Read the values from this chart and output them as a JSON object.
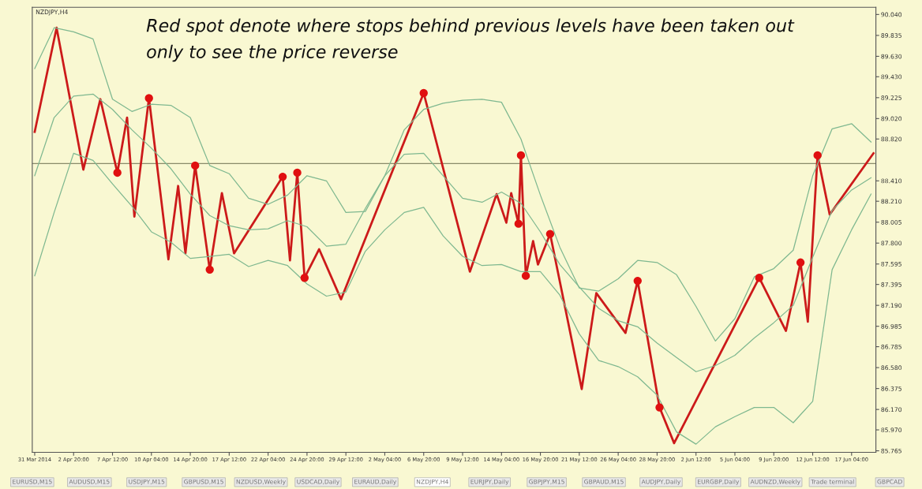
{
  "chart_data": {
    "type": "line",
    "title": "NZDJPY,H4",
    "annotations": [
      "Red spot denote where stops behind previous levels have been taken out\nonly to see the price reverse",
      "EURUSD,M15",
      "AUDUSD,M15",
      "USDJPY,M15",
      "GBPUSD,M15",
      "NZDUSD,Weekly",
      "USDCAD,Daily",
      "EURAUD,Daily",
      "NZDJPY,H4",
      "EURJPY,Daily",
      "GBPJPY,M15",
      "GBPAUD,M15",
      "AUDJPY,Daily",
      "EURGBP,Daily",
      "AUDNZD,Weekly",
      "Trade terminal",
      "GBPCAD"
    ],
    "categories": [
      "31 Mar 2014",
      null,
      null,
      null,
      null,
      null,
      null,
      null,
      null,
      null,
      null,
      null,
      null,
      null,
      null,
      null,
      "2 Apr 20:00",
      null,
      null,
      null,
      null,
      null,
      null,
      null,
      null,
      null,
      null,
      null,
      null,
      null,
      null,
      null,
      "7 Apr 12:00",
      null,
      null,
      null,
      null,
      null,
      null,
      null,
      null,
      null,
      null,
      null,
      null,
      null,
      null,
      null,
      "10 Apr 04:00",
      null,
      null,
      null,
      null,
      null,
      null,
      null,
      null,
      null,
      null,
      null,
      null,
      null,
      null,
      null,
      "14 Apr 20:00",
      null,
      null,
      null,
      null,
      null,
      null,
      null,
      null,
      null,
      null,
      null,
      null,
      null,
      null,
      null,
      "17 Apr 12:00",
      null,
      null,
      null,
      null,
      null,
      null,
      null,
      null,
      null,
      null,
      null,
      null,
      null,
      null,
      null,
      "22 Apr 04:00",
      null,
      null,
      null,
      null,
      null,
      null,
      null,
      null,
      null,
      null,
      null,
      null,
      null,
      null,
      null,
      "24 Apr 20:00",
      null,
      null,
      null,
      null,
      null,
      null,
      null,
      null,
      null,
      null,
      null,
      null,
      null,
      null,
      null,
      "29 Apr 12:00",
      null,
      null,
      null,
      null,
      null,
      null,
      null,
      null,
      null,
      null,
      null,
      null,
      null,
      null,
      null,
      "2 May 04:00",
      null,
      null,
      null,
      null,
      null,
      null,
      null,
      null,
      null,
      null,
      null,
      null,
      null,
      null,
      null,
      "6 May 20:00",
      null,
      null,
      null,
      null,
      null,
      null,
      null,
      null,
      null,
      null,
      null,
      null,
      null,
      null,
      null,
      "9 May 12:00",
      null,
      null,
      null,
      null,
      null,
      null,
      null,
      null,
      null,
      null,
      null,
      null,
      null,
      null,
      null,
      "14 May 04:00",
      null,
      null,
      null,
      null,
      null,
      null,
      null,
      null,
      null,
      null,
      null,
      null,
      null,
      null,
      null,
      "16 May 20:00",
      null,
      null,
      null,
      null,
      null,
      null,
      null,
      null,
      null,
      null,
      null,
      null,
      null,
      null,
      null,
      "21 May 12:00",
      null,
      null,
      null,
      null,
      null,
      null,
      null,
      null,
      null,
      null,
      null,
      null,
      null,
      null,
      null,
      "26 May 04:00",
      null,
      null,
      null,
      null,
      null,
      null,
      null,
      null,
      null,
      null,
      null,
      null,
      null,
      null,
      null,
      "28 May 20:00",
      null,
      null,
      null,
      null,
      null,
      null,
      null,
      null,
      null,
      null,
      null,
      null,
      null,
      null,
      null,
      "2 Jun 12:00",
      null,
      null,
      null,
      null,
      null,
      null,
      null,
      null,
      null,
      null,
      null,
      null,
      null,
      null,
      null,
      "5 Jun 04:00",
      null,
      null,
      null,
      null,
      null,
      null,
      null,
      null,
      null,
      null,
      null,
      null,
      null,
      null,
      null,
      "9 Jun 20:00",
      null,
      null,
      null,
      null,
      null,
      null,
      null,
      null,
      null,
      null,
      null,
      null,
      null,
      null,
      null,
      "12 Jun 12:00",
      null,
      null,
      null,
      null,
      null,
      null,
      null,
      null,
      null,
      null,
      null,
      null,
      null,
      null,
      null,
      "17 Jun 04:00",
      null,
      null,
      null,
      null,
      null,
      null,
      null,
      null,
      null
    ],
    "ylim": [
      85.75,
      90.11
    ],
    "yticks": [
      {
        "value": 90.04,
        "label": "90.040"
      },
      {
        "value": 89.835,
        "label": "89.835"
      },
      {
        "value": 89.63,
        "label": "89.630"
      },
      {
        "value": 89.43,
        "label": "89.430"
      },
      {
        "value": 89.225,
        "label": "89.225"
      },
      {
        "value": 89.02,
        "label": "89.020"
      },
      {
        "value": 88.82,
        "label": "88.820"
      },
      {
        "value": 88.41,
        "label": "88.410"
      },
      {
        "value": 88.21,
        "label": "88.210"
      },
      {
        "value": 88.005,
        "label": "88.005"
      },
      {
        "value": 87.8,
        "label": "87.800"
      },
      {
        "value": 87.595,
        "label": "87.595"
      },
      {
        "value": 87.395,
        "label": "87.395"
      },
      {
        "value": 87.19,
        "label": "87.190"
      },
      {
        "value": 86.985,
        "label": "86.985"
      },
      {
        "value": 86.785,
        "label": "86.785"
      },
      {
        "value": 86.58,
        "label": "86.580"
      },
      {
        "value": 86.375,
        "label": "86.375"
      },
      {
        "value": 86.17,
        "label": "86.170"
      },
      {
        "value": 85.97,
        "label": "85.970"
      },
      {
        "value": 85.765,
        "label": "85.765"
      }
    ],
    "ref_lines": [
      {
        "axis": "y",
        "value": 88.58,
        "color": "#8a8a6a"
      }
    ],
    "series": [
      {
        "color": "#7fb890",
        "values": [
          89.51,
          null,
          null,
          null,
          null,
          null,
          null,
          null,
          89.91,
          null,
          null,
          null,
          null,
          null,
          null,
          null,
          89.87,
          null,
          null,
          null,
          null,
          null,
          null,
          null,
          89.8,
          null,
          null,
          null,
          null,
          null,
          null,
          null,
          89.21,
          null,
          null,
          null,
          null,
          null,
          null,
          null,
          89.09,
          null,
          null,
          null,
          null,
          null,
          null,
          null,
          89.16,
          null,
          null,
          null,
          null,
          null,
          null,
          null,
          89.15,
          null,
          null,
          null,
          null,
          null,
          null,
          null,
          89.03,
          null,
          null,
          null,
          null,
          null,
          null,
          null,
          88.56,
          null,
          null,
          null,
          null,
          null,
          null,
          null,
          88.48,
          null,
          null,
          null,
          null,
          null,
          null,
          null,
          88.24,
          null,
          null,
          null,
          null,
          null,
          null,
          null,
          88.18,
          null,
          null,
          null,
          null,
          null,
          null,
          null,
          88.27,
          null,
          null,
          null,
          null,
          null,
          null,
          null,
          88.46,
          null,
          null,
          null,
          null,
          null,
          null,
          null,
          88.41,
          null,
          null,
          null,
          null,
          null,
          null,
          null,
          88.1,
          null,
          null,
          null,
          null,
          null,
          null,
          null,
          88.11,
          null,
          null,
          null,
          null,
          null,
          null,
          null,
          88.46,
          null,
          null,
          null,
          null,
          null,
          null,
          null,
          88.91,
          null,
          null,
          null,
          null,
          null,
          null,
          null,
          89.11,
          null,
          null,
          null,
          null,
          null,
          null,
          null,
          89.17,
          null,
          null,
          null,
          null,
          null,
          null,
          null,
          89.2,
          null,
          null,
          null,
          null,
          null,
          null,
          null,
          89.21,
          null,
          null,
          null,
          null,
          null,
          null,
          null,
          89.18,
          null,
          null,
          null,
          null,
          null,
          null,
          null,
          88.82,
          null,
          null,
          null,
          null,
          null,
          null,
          null,
          88.27,
          null,
          null,
          null,
          null,
          null,
          null,
          null,
          87.76,
          null,
          null,
          null,
          null,
          null,
          null,
          null,
          87.36,
          null,
          null,
          null,
          null,
          null,
          null,
          null,
          87.33,
          null,
          null,
          null,
          null,
          null,
          null,
          null,
          87.45,
          null,
          null,
          null,
          null,
          null,
          null,
          null,
          87.63,
          null,
          null,
          null,
          null,
          null,
          null,
          null,
          87.61,
          null,
          null,
          null,
          null,
          null,
          null,
          null,
          87.49,
          null,
          null,
          null,
          null,
          null,
          null,
          null,
          87.18,
          null,
          null,
          null,
          null,
          null,
          null,
          null,
          86.84,
          null,
          null,
          null,
          null,
          null,
          null,
          null,
          87.06,
          null,
          null,
          null,
          null,
          null,
          null,
          null,
          87.47,
          null,
          null,
          null,
          null,
          null,
          null,
          null,
          87.55,
          null,
          null,
          null,
          null,
          null,
          null,
          null,
          87.73,
          null,
          null,
          null,
          null,
          null,
          null,
          null,
          88.46,
          null,
          null,
          null,
          null,
          null,
          null,
          null,
          88.92,
          null,
          null,
          null,
          null,
          null,
          null,
          null,
          88.97,
          null,
          null,
          null,
          null,
          null,
          null,
          null,
          88.79,
          null
        ]
      },
      {
        "color": "#7fb890",
        "values": [
          88.46,
          null,
          null,
          null,
          null,
          null,
          null,
          null,
          89.03,
          null,
          null,
          null,
          null,
          null,
          null,
          null,
          89.24,
          null,
          null,
          null,
          null,
          null,
          null,
          null,
          89.26,
          null,
          null,
          null,
          null,
          null,
          null,
          null,
          89.11,
          null,
          null,
          null,
          null,
          null,
          null,
          null,
          88.91,
          null,
          null,
          null,
          null,
          null,
          null,
          null,
          88.73,
          null,
          null,
          null,
          null,
          null,
          null,
          null,
          88.53,
          null,
          null,
          null,
          null,
          null,
          null,
          null,
          88.28,
          null,
          null,
          null,
          null,
          null,
          null,
          null,
          88.07,
          null,
          null,
          null,
          null,
          null,
          null,
          null,
          87.97,
          null,
          null,
          null,
          null,
          null,
          null,
          null,
          87.93,
          null,
          null,
          null,
          null,
          null,
          null,
          null,
          87.94,
          null,
          null,
          null,
          null,
          null,
          null,
          null,
          88.02,
          null,
          null,
          null,
          null,
          null,
          null,
          null,
          87.96,
          null,
          null,
          null,
          null,
          null,
          null,
          null,
          87.77,
          null,
          null,
          null,
          null,
          null,
          null,
          null,
          87.79,
          null,
          null,
          null,
          null,
          null,
          null,
          null,
          88.14,
          null,
          null,
          null,
          null,
          null,
          null,
          null,
          88.46,
          null,
          null,
          null,
          null,
          null,
          null,
          null,
          88.67,
          null,
          null,
          null,
          null,
          null,
          null,
          null,
          88.68,
          null,
          null,
          null,
          null,
          null,
          null,
          null,
          88.46,
          null,
          null,
          null,
          null,
          null,
          null,
          null,
          88.24,
          null,
          null,
          null,
          null,
          null,
          null,
          null,
          88.2,
          null,
          null,
          null,
          null,
          null,
          null,
          null,
          88.3,
          null,
          null,
          null,
          null,
          null,
          null,
          null,
          88.19,
          null,
          null,
          null,
          null,
          null,
          null,
          null,
          87.91,
          null,
          null,
          null,
          null,
          null,
          null,
          null,
          87.59,
          null,
          null,
          null,
          null,
          null,
          null,
          null,
          87.37,
          null,
          null,
          null,
          null,
          null,
          null,
          null,
          87.16,
          null,
          null,
          null,
          null,
          null,
          null,
          null,
          87.04,
          null,
          null,
          null,
          null,
          null,
          null,
          null,
          86.98,
          null,
          null,
          null,
          null,
          null,
          null,
          null,
          86.82,
          null,
          null,
          null,
          null,
          null,
          null,
          null,
          86.68,
          null,
          null,
          null,
          null,
          null,
          null,
          null,
          86.54,
          null,
          null,
          null,
          null,
          null,
          null,
          null,
          86.6,
          null,
          null,
          null,
          null,
          null,
          null,
          null,
          86.7,
          null,
          null,
          null,
          null,
          null,
          null,
          null,
          86.87,
          null,
          null,
          null,
          null,
          null,
          null,
          null,
          87.02,
          null,
          null,
          null,
          null,
          null,
          null,
          null,
          87.19,
          null,
          null,
          null,
          null,
          null,
          null,
          null,
          87.66,
          null,
          null,
          null,
          null,
          null,
          null,
          null,
          88.12,
          null,
          null,
          null,
          null,
          null,
          null,
          null,
          88.32,
          null,
          null,
          null,
          null,
          null,
          null,
          null,
          88.44,
          null
        ]
      },
      {
        "color": "#7fb890",
        "values": [
          87.48,
          null,
          null,
          null,
          null,
          null,
          null,
          null,
          88.1,
          null,
          null,
          null,
          null,
          null,
          null,
          null,
          88.68,
          null,
          null,
          null,
          null,
          null,
          null,
          null,
          88.61,
          null,
          null,
          null,
          null,
          null,
          null,
          null,
          88.38,
          null,
          null,
          null,
          null,
          null,
          null,
          null,
          88.16,
          null,
          null,
          null,
          null,
          null,
          null,
          null,
          87.91,
          null,
          null,
          null,
          null,
          null,
          null,
          null,
          87.81,
          null,
          null,
          null,
          null,
          null,
          null,
          null,
          87.65,
          null,
          null,
          null,
          null,
          null,
          null,
          null,
          87.67,
          null,
          null,
          null,
          null,
          null,
          null,
          null,
          87.69,
          null,
          null,
          null,
          null,
          null,
          null,
          null,
          87.57,
          null,
          null,
          null,
          null,
          null,
          null,
          null,
          87.63,
          null,
          null,
          null,
          null,
          null,
          null,
          null,
          87.58,
          null,
          null,
          null,
          null,
          null,
          null,
          null,
          87.4,
          null,
          null,
          null,
          null,
          null,
          null,
          null,
          87.28,
          null,
          null,
          null,
          null,
          null,
          null,
          null,
          87.32,
          null,
          null,
          null,
          null,
          null,
          null,
          null,
          87.72,
          null,
          null,
          null,
          null,
          null,
          null,
          null,
          87.93,
          null,
          null,
          null,
          null,
          null,
          null,
          null,
          88.1,
          null,
          null,
          null,
          null,
          null,
          null,
          null,
          88.15,
          null,
          null,
          null,
          null,
          null,
          null,
          null,
          87.87,
          null,
          null,
          null,
          null,
          null,
          null,
          null,
          87.67,
          null,
          null,
          null,
          null,
          null,
          null,
          null,
          87.58,
          null,
          null,
          null,
          null,
          null,
          null,
          null,
          87.59,
          null,
          null,
          null,
          null,
          null,
          null,
          null,
          87.52,
          null,
          null,
          null,
          null,
          null,
          null,
          null,
          87.52,
          null,
          null,
          null,
          null,
          null,
          null,
          null,
          87.29,
          null,
          null,
          null,
          null,
          null,
          null,
          null,
          86.91,
          null,
          null,
          null,
          null,
          null,
          null,
          null,
          86.65,
          null,
          null,
          null,
          null,
          null,
          null,
          null,
          86.59,
          null,
          null,
          null,
          null,
          null,
          null,
          null,
          86.49,
          null,
          null,
          null,
          null,
          null,
          null,
          null,
          86.31,
          null,
          null,
          null,
          null,
          null,
          null,
          null,
          85.95,
          null,
          null,
          null,
          null,
          null,
          null,
          null,
          85.83,
          null,
          null,
          null,
          null,
          null,
          null,
          null,
          86.0,
          null,
          null,
          null,
          null,
          null,
          null,
          null,
          86.1,
          null,
          null,
          null,
          null,
          null,
          null,
          null,
          86.19,
          null,
          null,
          null,
          null,
          null,
          null,
          null,
          86.19,
          null,
          null,
          null,
          null,
          null,
          null,
          null,
          86.04,
          null,
          null,
          null,
          null,
          null,
          null,
          null,
          86.25,
          null,
          null,
          null,
          null,
          null,
          null,
          null,
          87.54,
          null,
          null,
          null,
          null,
          null,
          null,
          null,
          87.93,
          null,
          null,
          null,
          null,
          null,
          null,
          null,
          88.28,
          null
        ]
      },
      {
        "color": "#cc1a1a",
        "values": [
          88.89,
          null,
          null,
          null,
          null,
          null,
          null,
          null,
          null,
          89.91,
          null,
          null,
          null,
          null,
          null,
          null,
          null,
          null,
          null,
          null,
          88.52,
          null,
          null,
          null,
          null,
          null,
          null,
          89.21,
          null,
          null,
          null,
          null,
          null,
          null,
          88.49,
          null,
          null,
          null,
          89.03,
          null,
          null,
          88.06,
          null,
          null,
          null,
          null,
          null,
          89.22,
          null,
          null,
          null,
          null,
          null,
          null,
          null,
          87.64,
          null,
          null,
          null,
          88.36,
          null,
          null,
          87.7,
          null,
          null,
          null,
          88.56,
          null,
          null,
          null,
          null,
          null,
          87.54,
          null,
          null,
          null,
          null,
          88.29,
          null,
          null,
          null,
          null,
          87.7,
          null,
          null,
          null,
          null,
          null,
          null,
          null,
          null,
          null,
          null,
          null,
          null,
          null,
          null,
          null,
          null,
          null,
          null,
          null,
          88.45,
          null,
          null,
          87.63,
          null,
          null,
          88.49,
          null,
          null,
          87.46,
          null,
          null,
          null,
          null,
          null,
          87.74,
          null,
          null,
          null,
          null,
          null,
          null,
          null,
          null,
          87.25,
          null,
          null,
          null,
          null,
          null,
          null,
          null,
          null,
          null,
          null,
          null,
          null,
          null,
          null,
          null,
          null,
          null,
          null,
          null,
          null,
          null,
          null,
          null,
          null,
          null,
          null,
          null,
          null,
          null,
          null,
          null,
          null,
          null,
          89.27,
          null,
          null,
          null,
          null,
          null,
          null,
          null,
          null,
          null,
          null,
          null,
          null,
          null,
          null,
          null,
          null,
          null,
          null,
          87.52,
          null,
          null,
          null,
          null,
          null,
          null,
          null,
          null,
          null,
          null,
          88.28,
          null,
          null,
          null,
          88.0,
          null,
          88.29,
          null,
          null,
          87.99,
          88.66,
          null,
          87.48,
          null,
          null,
          87.82,
          null,
          87.59,
          null,
          null,
          null,
          null,
          87.89,
          null,
          null,
          null,
          null,
          null,
          null,
          null,
          null,
          null,
          null,
          null,
          null,
          86.37,
          null,
          null,
          null,
          null,
          null,
          87.31,
          null,
          null,
          null,
          null,
          null,
          null,
          null,
          null,
          null,
          null,
          null,
          86.92,
          null,
          null,
          null,
          null,
          87.43,
          null,
          null,
          null,
          null,
          null,
          null,
          null,
          null,
          86.19,
          null,
          null,
          null,
          null,
          null,
          85.84,
          null,
          null,
          null,
          null,
          null,
          null,
          null,
          null,
          null,
          null,
          null,
          null,
          null,
          null,
          null,
          null,
          null,
          null,
          null,
          null,
          null,
          null,
          null,
          null,
          null,
          null,
          null,
          null,
          null,
          null,
          null,
          null,
          null,
          null,
          87.46,
          null,
          null,
          null,
          null,
          null,
          null,
          null,
          null,
          null,
          null,
          86.94,
          null,
          null,
          null,
          null,
          null,
          87.61,
          null,
          null,
          87.03,
          null,
          null,
          null,
          88.66,
          null,
          null,
          null,
          null,
          88.08,
          null,
          null,
          null,
          null,
          null,
          null,
          null,
          null,
          null,
          null,
          null,
          null,
          null,
          null,
          null,
          null,
          null,
          88.68
        ]
      },
      {
        "type": "scatter",
        "marker": "circle",
        "color": "#e01010",
        "values": [
          null,
          null,
          null,
          null,
          null,
          null,
          null,
          null,
          null,
          null,
          null,
          null,
          null,
          null,
          null,
          null,
          null,
          null,
          null,
          null,
          null,
          null,
          null,
          null,
          null,
          null,
          null,
          null,
          null,
          null,
          null,
          null,
          null,
          null,
          88.49,
          null,
          null,
          null,
          null,
          null,
          null,
          null,
          null,
          null,
          null,
          null,
          null,
          89.22,
          null,
          null,
          null,
          null,
          null,
          null,
          null,
          null,
          null,
          null,
          null,
          null,
          null,
          null,
          null,
          null,
          null,
          null,
          88.56,
          null,
          null,
          null,
          null,
          null,
          87.54,
          null,
          null,
          null,
          null,
          null,
          null,
          null,
          null,
          null,
          null,
          null,
          null,
          null,
          null,
          null,
          null,
          null,
          null,
          null,
          null,
          null,
          null,
          null,
          null,
          null,
          null,
          null,
          null,
          null,
          88.45,
          null,
          null,
          null,
          null,
          null,
          88.49,
          null,
          null,
          87.46,
          null,
          null,
          null,
          null,
          null,
          null,
          null,
          null,
          null,
          null,
          null,
          null,
          null,
          null,
          null,
          null,
          null,
          null,
          null,
          null,
          null,
          null,
          null,
          null,
          null,
          null,
          null,
          null,
          null,
          null,
          null,
          null,
          null,
          null,
          null,
          null,
          null,
          null,
          null,
          null,
          null,
          null,
          null,
          null,
          null,
          null,
          null,
          null,
          89.27,
          null,
          null,
          null,
          null,
          null,
          null,
          null,
          null,
          null,
          null,
          null,
          null,
          null,
          null,
          null,
          null,
          null,
          null,
          null,
          null,
          null,
          null,
          null,
          null,
          null,
          null,
          null,
          null,
          null,
          null,
          null,
          null,
          null,
          null,
          null,
          null,
          null,
          null,
          87.99,
          88.66,
          null,
          87.48,
          null,
          null,
          null,
          null,
          null,
          null,
          null,
          null,
          null,
          87.89,
          null,
          null,
          null,
          null,
          null,
          null,
          null,
          null,
          null,
          null,
          null,
          null,
          null,
          null,
          null,
          null,
          null,
          null,
          null,
          null,
          null,
          null,
          null,
          null,
          null,
          null,
          null,
          null,
          null,
          null,
          null,
          null,
          null,
          null,
          null,
          87.43,
          null,
          null,
          null,
          null,
          null,
          null,
          null,
          null,
          86.19,
          null,
          null,
          null,
          null,
          null,
          null,
          null,
          null,
          null,
          null,
          null,
          null,
          null,
          null,
          null,
          null,
          null,
          null,
          null,
          null,
          null,
          null,
          null,
          null,
          null,
          null,
          null,
          null,
          null,
          null,
          null,
          null,
          null,
          null,
          null,
          null,
          null,
          null,
          null,
          null,
          87.46,
          null,
          null,
          null,
          null,
          null,
          null,
          null,
          null,
          null,
          null,
          null,
          null,
          null,
          null,
          null,
          null,
          87.61,
          null,
          null,
          null,
          null,
          null,
          null,
          88.66,
          null,
          null,
          null,
          null,
          null,
          null,
          null,
          null,
          null,
          null,
          null,
          null,
          null,
          null,
          null,
          null,
          null,
          null,
          null,
          null,
          null,
          null,
          null
        ]
      }
    ]
  }
}
